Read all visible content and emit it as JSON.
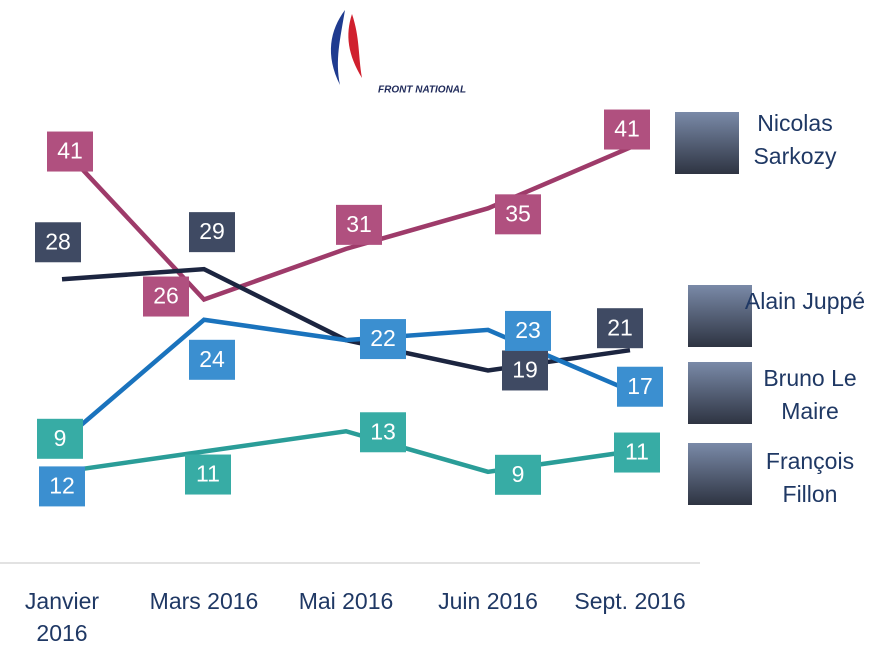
{
  "logo_text": "FRONT NATIONAL",
  "chart_data": {
    "type": "line",
    "categories": [
      "Janvier 2016",
      "Mars 2016",
      "Mai 2016",
      "Juin 2016",
      "Sept. 2016"
    ],
    "ylim": [
      0,
      45
    ],
    "series": [
      {
        "name": "Nicolas Sarkozy",
        "color": "#9e3b6a",
        "values": [
          41,
          26,
          31,
          35,
          41
        ]
      },
      {
        "name": "Alain Juppé",
        "color": "#1c2540",
        "values": [
          28,
          29,
          22,
          19,
          21
        ],
        "value_labels": [
          "28",
          "29",
          null,
          "19",
          "21"
        ]
      },
      {
        "name": "Bruno Le Maire",
        "color": "#1a73bd",
        "values": [
          12,
          24,
          22,
          23,
          17
        ]
      },
      {
        "name": "François Fillon",
        "color": "#2a9d98",
        "values": [
          9,
          11,
          13,
          9,
          11
        ]
      }
    ]
  }
}
